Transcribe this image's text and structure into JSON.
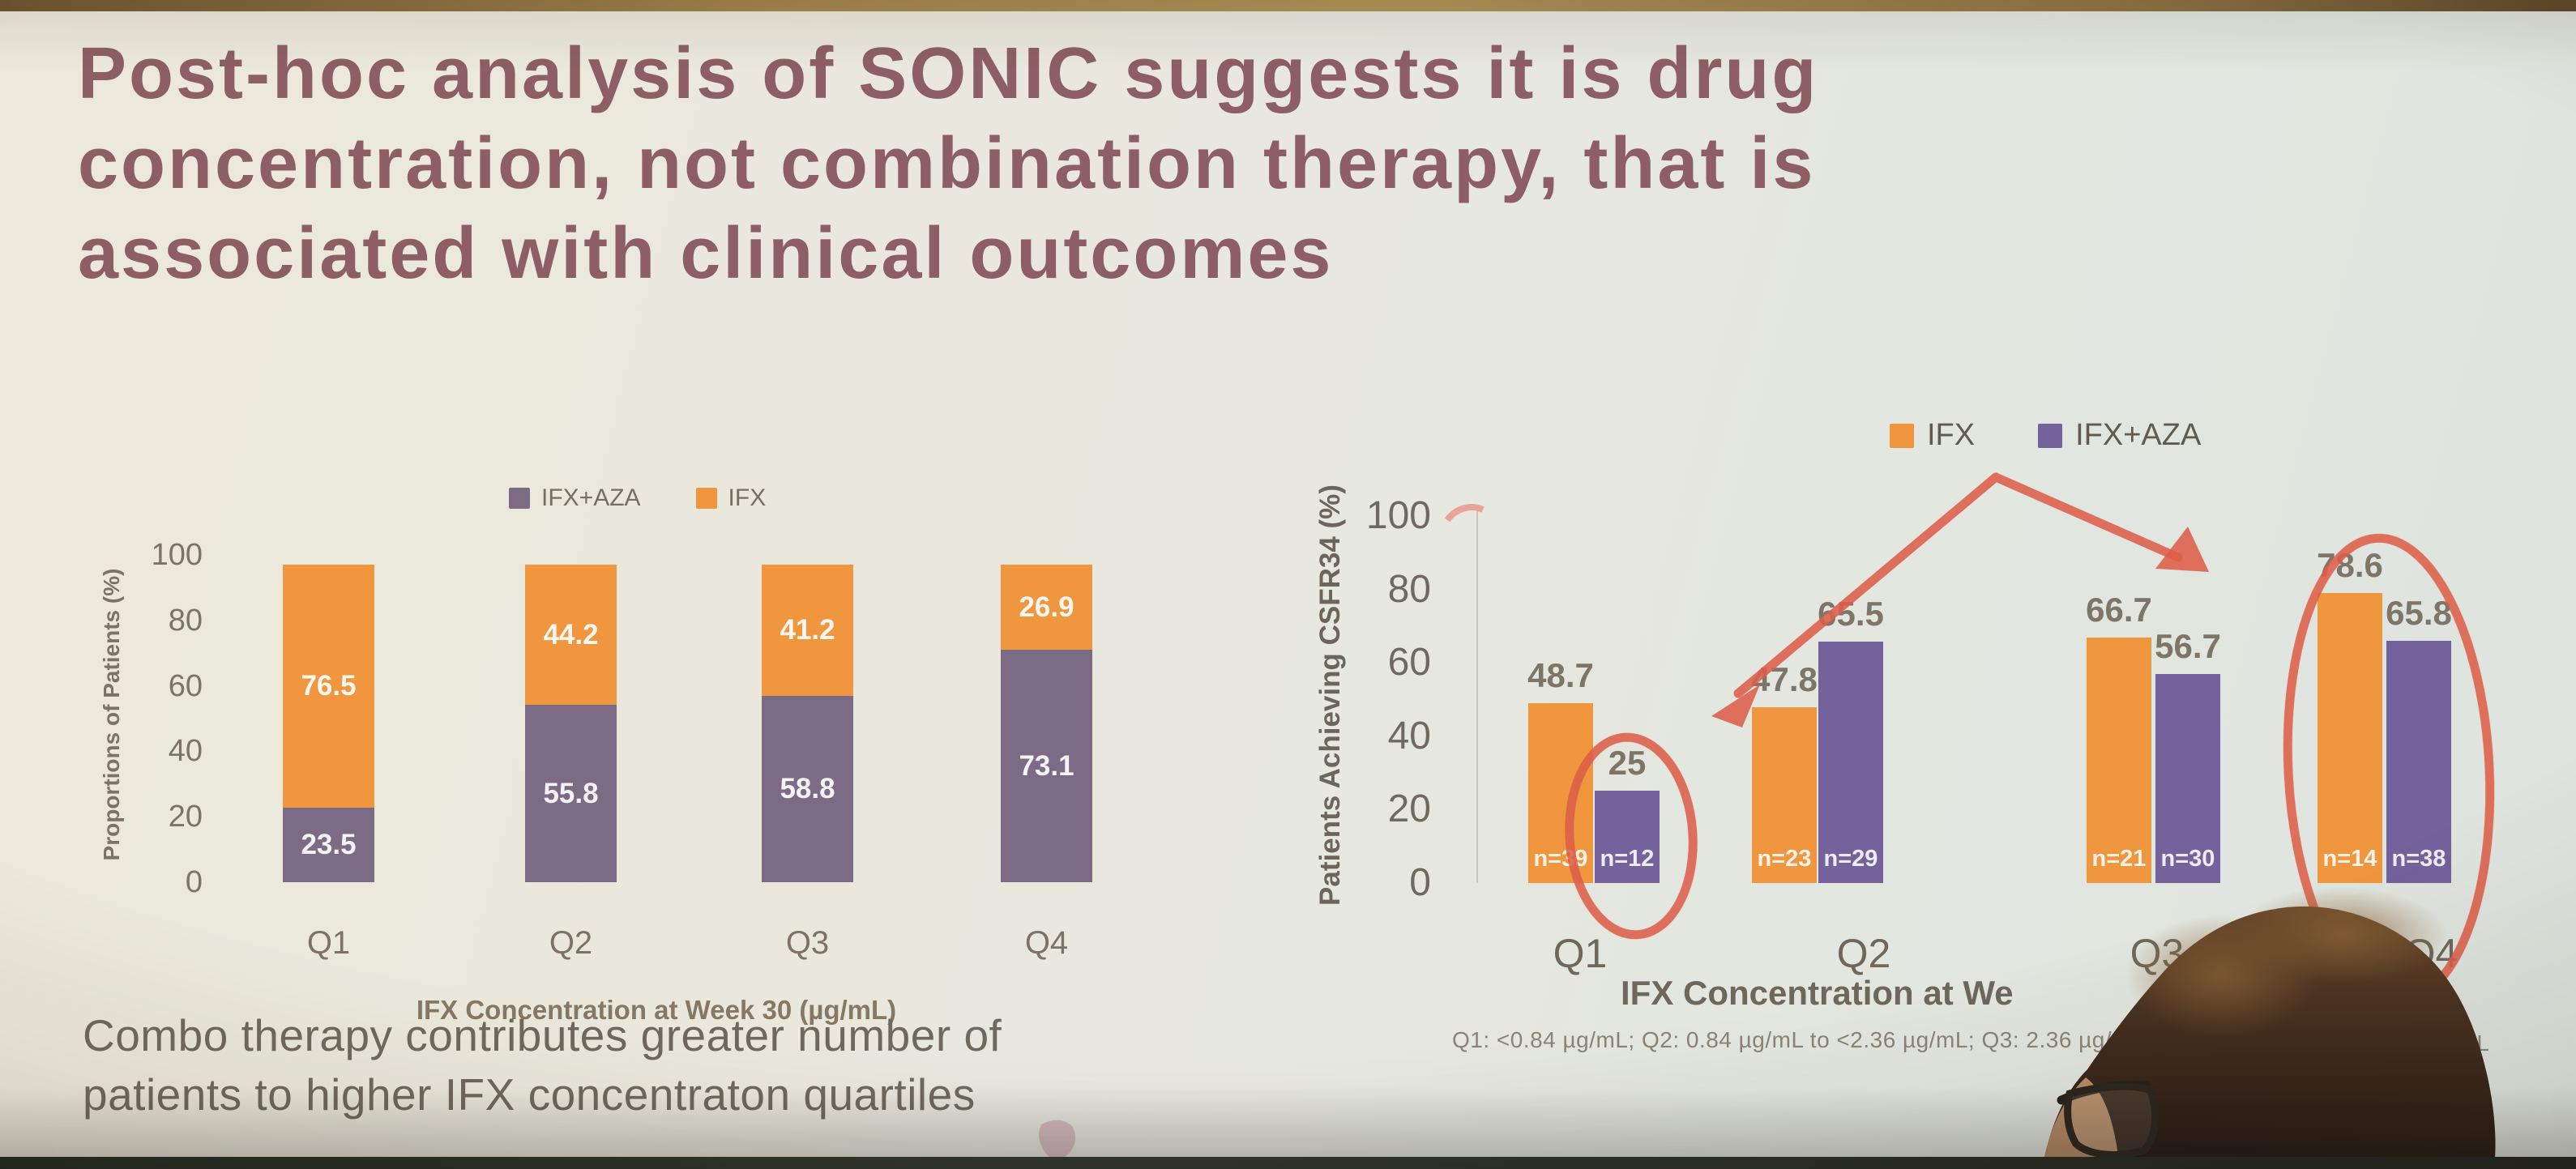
{
  "slide": {
    "title_lines": [
      "Post-hoc analysis of SONIC suggests it is drug",
      "concentration, not combination therapy, that is",
      "associated with clinical outcomes"
    ],
    "takeaway_lines": [
      "Combo therapy contributes greater number of",
      "patients to higher IFX concentraton quartiles"
    ],
    "footnote_visible": "Q1: <0.84 µg/mL; Q2: 0.84 µg/mL to <2.36 µg/mL; Q3: 2.36 µg/m",
    "footnote_fragment_right_of_head": "mL",
    "obstruction": "back of audience member's head with glasses covers bottom-right of slide"
  },
  "colors": {
    "orange": "#f0963e",
    "purple_left_chart": "#7c6b85",
    "purple_right_chart": "#73629c",
    "title_text": "#8d5f64",
    "body_text": "#6e695d",
    "axis_text": "#7b7365",
    "red_annotation": "#dd5f49",
    "slide_background": "#e9e7dd"
  },
  "chart_data": [
    {
      "type": "bar",
      "variant": "stacked",
      "title": "",
      "categories": [
        "Q1",
        "Q2",
        "Q3",
        "Q4"
      ],
      "series": [
        {
          "name": "IFX+AZA",
          "color_key": "purple_left_chart",
          "values": [
            23.5,
            55.8,
            58.8,
            73.1
          ]
        },
        {
          "name": "IFX",
          "color_key": "orange",
          "values": [
            76.5,
            44.2,
            41.2,
            26.9
          ]
        }
      ],
      "ylabel": "Proportions of Patients (%)",
      "xlabel": "IFX Concentration at Week 30 (µg/mL)",
      "yticks": [
        "100",
        "80",
        "60",
        "40",
        "20",
        "0"
      ],
      "ylim": [
        0,
        100
      ],
      "legend": [
        "IFX+AZA",
        "IFX"
      ],
      "legend_position": "top",
      "grid": false
    },
    {
      "type": "bar",
      "variant": "grouped",
      "title": "",
      "categories": [
        "Q1",
        "Q2",
        "Q3",
        "Q4"
      ],
      "series": [
        {
          "name": "IFX",
          "color_key": "orange",
          "values": [
            48.7,
            47.8,
            66.7,
            78.6
          ],
          "n_labels": [
            "n=39",
            "n=23",
            "n=21",
            "n=14"
          ]
        },
        {
          "name": "IFX+AZA",
          "color_key": "purple_right_chart",
          "values": [
            25,
            65.5,
            56.7,
            65.8
          ],
          "n_labels": [
            "n=12",
            "n=29",
            "n=30",
            "n=38"
          ]
        }
      ],
      "ylabel": "Patients Achieving CSFR34 (%)",
      "xlabel_visible": "IFX Concentration at We",
      "yticks": [
        "100",
        "80",
        "60",
        "40",
        "20",
        "0"
      ],
      "ylim": [
        0,
        100
      ],
      "legend": [
        "IFX",
        "IFX+AZA"
      ],
      "legend_position": "top",
      "grid": false,
      "annotations": {
        "circled_bars": [
          "Q1 IFX+AZA (25, n=12)",
          "Q4 IFX (78.6, n=14)"
        ],
        "arrows": "two hand-drawn arrows from below the legend pointing to the circled Q1 IFX+AZA bar and the circled Q4 IFX bar"
      }
    }
  ]
}
